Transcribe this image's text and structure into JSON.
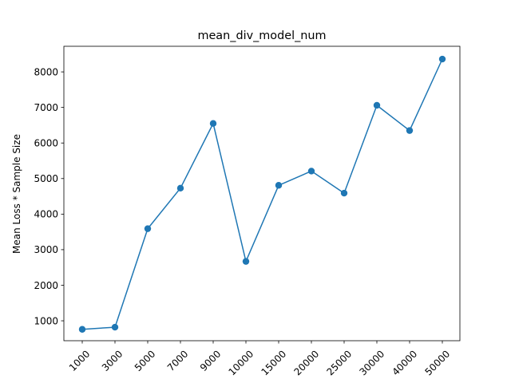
{
  "chart_data": {
    "type": "line",
    "title": "mean_div_model_num",
    "xlabel": "",
    "ylabel": "Mean Loss * Sample Size",
    "categories": [
      "1000",
      "3000",
      "5000",
      "7000",
      "9000",
      "10000",
      "15000",
      "20000",
      "25000",
      "30000",
      "40000",
      "50000"
    ],
    "series": [
      {
        "values": [
          760,
          820,
          3590,
          4730,
          6550,
          2670,
          4810,
          5210,
          4590,
          7060,
          6350,
          8360
        ],
        "color": "#1f77b4",
        "marker": "circle"
      }
    ],
    "ylim": [
      440,
      8720
    ],
    "yticks": [
      1000,
      2000,
      3000,
      4000,
      5000,
      6000,
      7000,
      8000
    ],
    "grid": false,
    "legend": "none"
  }
}
